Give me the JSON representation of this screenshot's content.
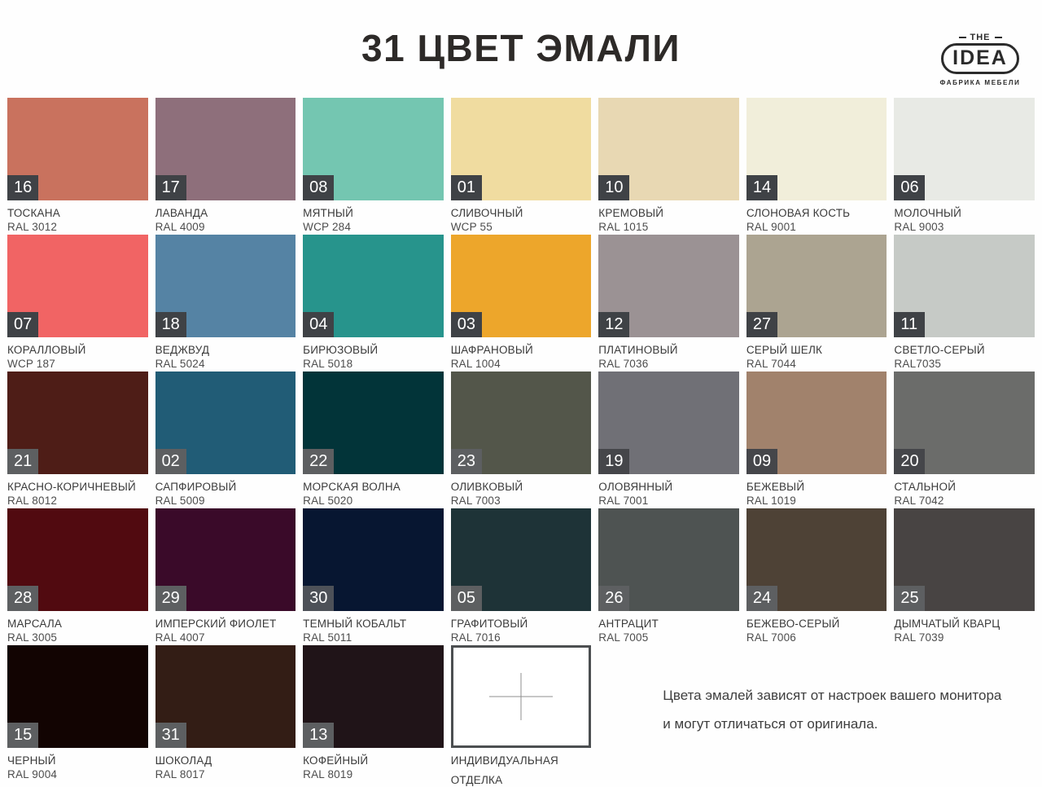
{
  "header": {
    "title": "31 ЦВЕТ ЭМАЛИ",
    "logo": {
      "the": "THE",
      "name": "IDEA",
      "tagline": "ФАБРИКА МЕБЕЛИ"
    }
  },
  "swatches": [
    {
      "num": "16",
      "name": "ТОСКАНА",
      "code": "RAL 3012",
      "color": "#c9725e",
      "badge": "#3f4246"
    },
    {
      "num": "17",
      "name": "ЛАВАНДА",
      "code": "RAL 4009",
      "color": "#8e6f7b",
      "badge": "#3f4246"
    },
    {
      "num": "08",
      "name": "МЯТНЫЙ",
      "code": "WCP 284",
      "color": "#74c6b1",
      "badge": "#3f4246"
    },
    {
      "num": "01",
      "name": "СЛИВОЧНЫЙ",
      "code": "WCP 55",
      "color": "#f0dca0",
      "badge": "#3f4246"
    },
    {
      "num": "10",
      "name": "КРЕМОВЫЙ",
      "code": "RAL 1015",
      "color": "#e8d8b3",
      "badge": "#3f4246"
    },
    {
      "num": "14",
      "name": "СЛОНОВАЯ КОСТЬ",
      "code": "RAL 9001",
      "color": "#f1eeda",
      "badge": "#3f4246"
    },
    {
      "num": "06",
      "name": "МОЛОЧНЫЙ",
      "code": "RAL 9003",
      "color": "#e8eae5",
      "badge": "#3f4246"
    },
    {
      "num": "07",
      "name": "КОРАЛЛОВЫЙ",
      "code": "WCP 187",
      "color": "#f16464",
      "badge": "#3f4246"
    },
    {
      "num": "18",
      "name": "ВЕДЖВУД",
      "code": "RAL 5024",
      "color": "#5583a4",
      "badge": "#3f4246"
    },
    {
      "num": "04",
      "name": "БИРЮЗОВЫЙ",
      "code": "RAL 5018",
      "color": "#27948c",
      "badge": "#3f4246"
    },
    {
      "num": "03",
      "name": "ШАФРАНОВЫЙ",
      "code": "RAL 1004",
      "color": "#eda62b",
      "badge": "#3f4246"
    },
    {
      "num": "12",
      "name": "ПЛАТИНОВЫЙ",
      "code": "RAL 7036",
      "color": "#9b9294",
      "badge": "#3f4246"
    },
    {
      "num": "27",
      "name": "СЕРЫЙ ШЕЛК",
      "code": "RAL 7044",
      "color": "#aca491",
      "badge": "#3f4246"
    },
    {
      "num": "11",
      "name": "СВЕТЛО-СЕРЫЙ",
      "code": "RAL7035",
      "color": "#c6cac6",
      "badge": "#3f4246"
    },
    {
      "num": "21",
      "name": "КРАСНО-КОРИЧНЕВЫЙ",
      "code": "RAL 8012",
      "color": "#4e1d17",
      "badge": "#5d5f61"
    },
    {
      "num": "02",
      "name": "САПФИРОВЫЙ",
      "code": "RAL 5009",
      "color": "#215c76",
      "badge": "#5d5f61"
    },
    {
      "num": "22",
      "name": "МОРСКАЯ ВОЛНА",
      "code": "RAL 5020",
      "color": "#023439",
      "badge": "#5d5f61"
    },
    {
      "num": "23",
      "name": "ОЛИВКОВЫЙ",
      "code": "RAL 7003",
      "color": "#53564a",
      "badge": "#5d5f61"
    },
    {
      "num": "19",
      "name": "ОЛОВЯННЫЙ",
      "code": "RAL 7001",
      "color": "#707076",
      "badge": "#45464a"
    },
    {
      "num": "09",
      "name": "БЕЖЕВЫЙ",
      "code": "RAL 1019",
      "color": "#a1826c",
      "badge": "#45464a"
    },
    {
      "num": "20",
      "name": "СТАЛЬНОЙ",
      "code": "RAL 7042",
      "color": "#6b6c6a",
      "badge": "#45464a"
    },
    {
      "num": "28",
      "name": "МАРСАЛА",
      "code": "RAL 3005",
      "color": "#510a10",
      "badge": "#5d5f61"
    },
    {
      "num": "29",
      "name": "ИМПЕРСКИЙ ФИОЛЕТ",
      "code": "RAL 4007",
      "color": "#3a0a29",
      "badge": "#5d5f61"
    },
    {
      "num": "30",
      "name": "ТЕМНЫЙ КОБАЛЬТ",
      "code": "RAL 5011",
      "color": "#071631",
      "badge": "#4d5158"
    },
    {
      "num": "05",
      "name": "ГРАФИТОВЫЙ",
      "code": "RAL 7016",
      "color": "#1e3337",
      "badge": "#5d5f61"
    },
    {
      "num": "26",
      "name": "АНТРАЦИТ",
      "code": "RAL 7005",
      "color": "#4e5352",
      "badge": "#5d5f61"
    },
    {
      "num": "24",
      "name": "БЕЖЕВО-СЕРЫЙ",
      "code": "RAL 7006",
      "color": "#4e4236",
      "badge": "#5d5f61"
    },
    {
      "num": "25",
      "name": "ДЫМЧАТЫЙ КВАРЦ",
      "code": "RAL 7039",
      "color": "#484443",
      "badge": "#5d5f61"
    },
    {
      "num": "15",
      "name": "ЧЕРНЫЙ",
      "code": "RAL 9004",
      "color": "#120402",
      "badge": "#5d5f61"
    },
    {
      "num": "31",
      "name": "ШОКОЛАД",
      "code": "RAL 8017",
      "color": "#331d15",
      "badge": "#5d5f61"
    },
    {
      "num": "13",
      "name": "КОФЕЙНЫЙ",
      "code": "RAL 8019",
      "color": "#201418",
      "badge": "#5d5f61"
    }
  ],
  "custom_finish": {
    "label_line1": "ИНДИВИДУАЛЬНАЯ",
    "label_line2": "ОТДЕЛКА",
    "border_color": "#4c4f51"
  },
  "disclaimer": {
    "line1": "Цвета эмалей зависят от настроек вашего монитора",
    "line2": "и могут отличаться от оригинала."
  }
}
